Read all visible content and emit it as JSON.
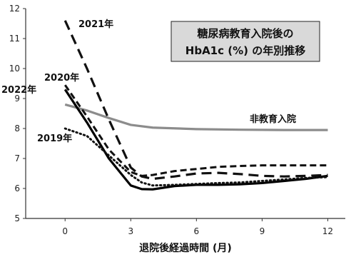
{
  "chart_data": {
    "type": "line",
    "title_lines": [
      "糖尿病教育入院後の",
      "HbA1c (%) の年別推移"
    ],
    "xlabel": "退院後経過時間 (月)",
    "ylabel": "",
    "xlim": [
      -1.8,
      12.8
    ],
    "ylim": [
      5,
      12
    ],
    "x_ticks": [
      0,
      3,
      6,
      9,
      12
    ],
    "y_ticks": [
      5,
      6,
      7,
      8,
      9,
      10,
      11,
      12
    ],
    "grid": false,
    "series": [
      {
        "name": "非教育入院",
        "style": "solid-gray",
        "color": "#8c8c8c",
        "x": [
          0,
          1,
          2,
          3,
          4,
          6,
          8,
          10,
          12
        ],
        "y": [
          8.8,
          8.6,
          8.35,
          8.12,
          8.03,
          7.98,
          7.96,
          7.95,
          7.95
        ]
      },
      {
        "name": "2021年",
        "style": "long-dash",
        "color": "#111111",
        "x": [
          0,
          1,
          2,
          3,
          3.5,
          4,
          5,
          6,
          7,
          8,
          9,
          10,
          11,
          12
        ],
        "y": [
          11.6,
          10.0,
          8.3,
          6.7,
          6.4,
          6.32,
          6.4,
          6.5,
          6.52,
          6.48,
          6.42,
          6.4,
          6.42,
          6.45
        ]
      },
      {
        "name": "2020年",
        "style": "dash",
        "color": "#111111",
        "x": [
          0,
          1,
          2,
          3,
          3.5,
          4,
          5,
          6,
          7,
          8,
          9,
          10,
          11,
          12
        ],
        "y": [
          9.45,
          8.4,
          7.3,
          6.55,
          6.42,
          6.45,
          6.58,
          6.65,
          6.72,
          6.75,
          6.77,
          6.77,
          6.77,
          6.77
        ]
      },
      {
        "name": "2022年",
        "style": "solid-black",
        "color": "#000000",
        "x": [
          0,
          1,
          2,
          3,
          3.5,
          4,
          5,
          6,
          7,
          8,
          9,
          10,
          11,
          12
        ],
        "y": [
          9.3,
          8.2,
          7.0,
          6.1,
          5.98,
          5.97,
          6.08,
          6.12,
          6.12,
          6.14,
          6.18,
          6.25,
          6.32,
          6.42
        ]
      },
      {
        "name": "2019年",
        "style": "dotted",
        "color": "#111111",
        "x": [
          0,
          1,
          2,
          3,
          3.5,
          4,
          5,
          6,
          7,
          8,
          9,
          10,
          11,
          12
        ],
        "y": [
          8.0,
          7.75,
          7.1,
          6.45,
          6.2,
          6.1,
          6.12,
          6.15,
          6.18,
          6.2,
          6.25,
          6.3,
          6.35,
          6.38
        ]
      }
    ]
  }
}
